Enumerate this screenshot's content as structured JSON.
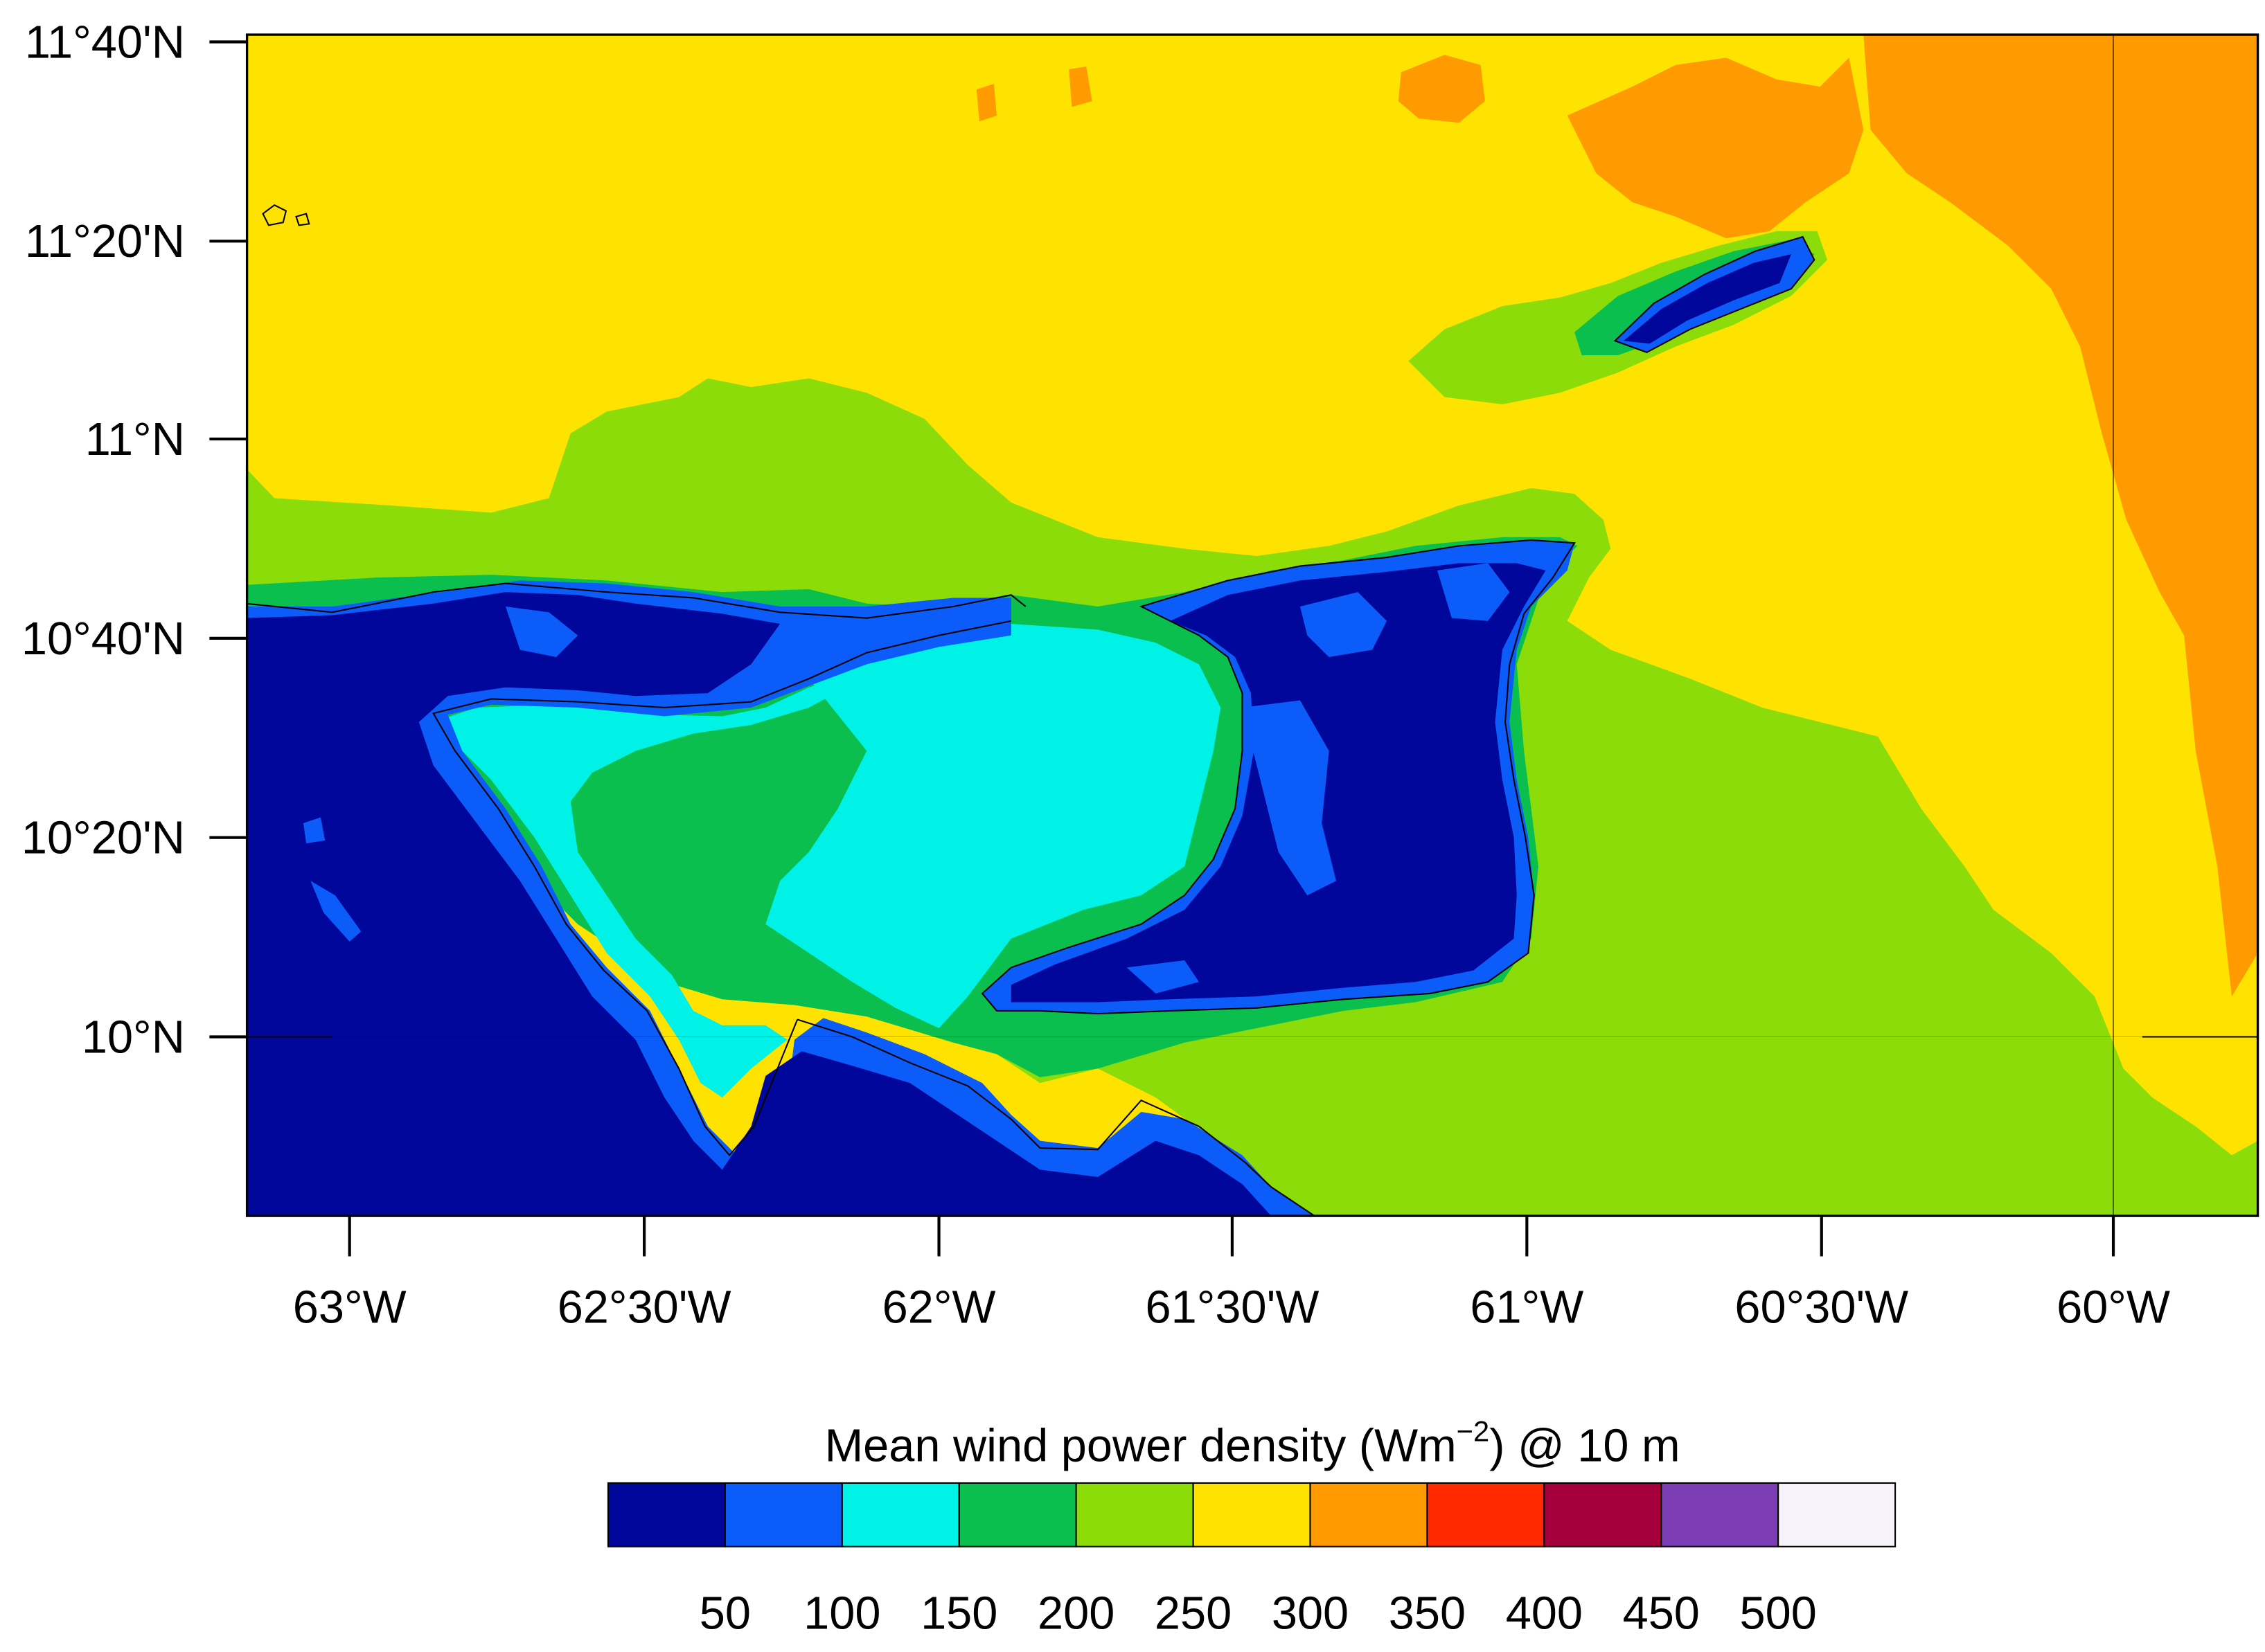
{
  "map": {
    "y_ticks": [
      "11°40'N",
      "11°20'N",
      "11°N",
      "10°40'N",
      "10°20'N",
      "10°N"
    ],
    "x_ticks": [
      "63°W",
      "62°30'W",
      "62°W",
      "61°30'W",
      "61°W",
      "60°30'W",
      "60°W"
    ],
    "legend": {
      "title_main": "Mean wind power density (Wm",
      "title_sup": "−2",
      "title_tail": ") @ 10 m",
      "colors": [
        "#02079b",
        "#0c5cfa",
        "#00f2e6",
        "#0abf4e",
        "#8cdc0a",
        "#ffe300",
        "#ff9a00",
        "#ff2a00",
        "#a5003c",
        "#7c3cb3",
        "#f6f4fa"
      ],
      "labels": [
        "50",
        "100",
        "150",
        "200",
        "250",
        "300",
        "350",
        "400",
        "450",
        "500"
      ]
    },
    "regions": [
      "open-sea-yellow",
      "orange-high-band-east",
      "green-band-north-coast",
      "trinidad-island",
      "gulf-of-paria",
      "venezuela-mainland",
      "tobago-island",
      "southeast-green-sea"
    ]
  }
}
